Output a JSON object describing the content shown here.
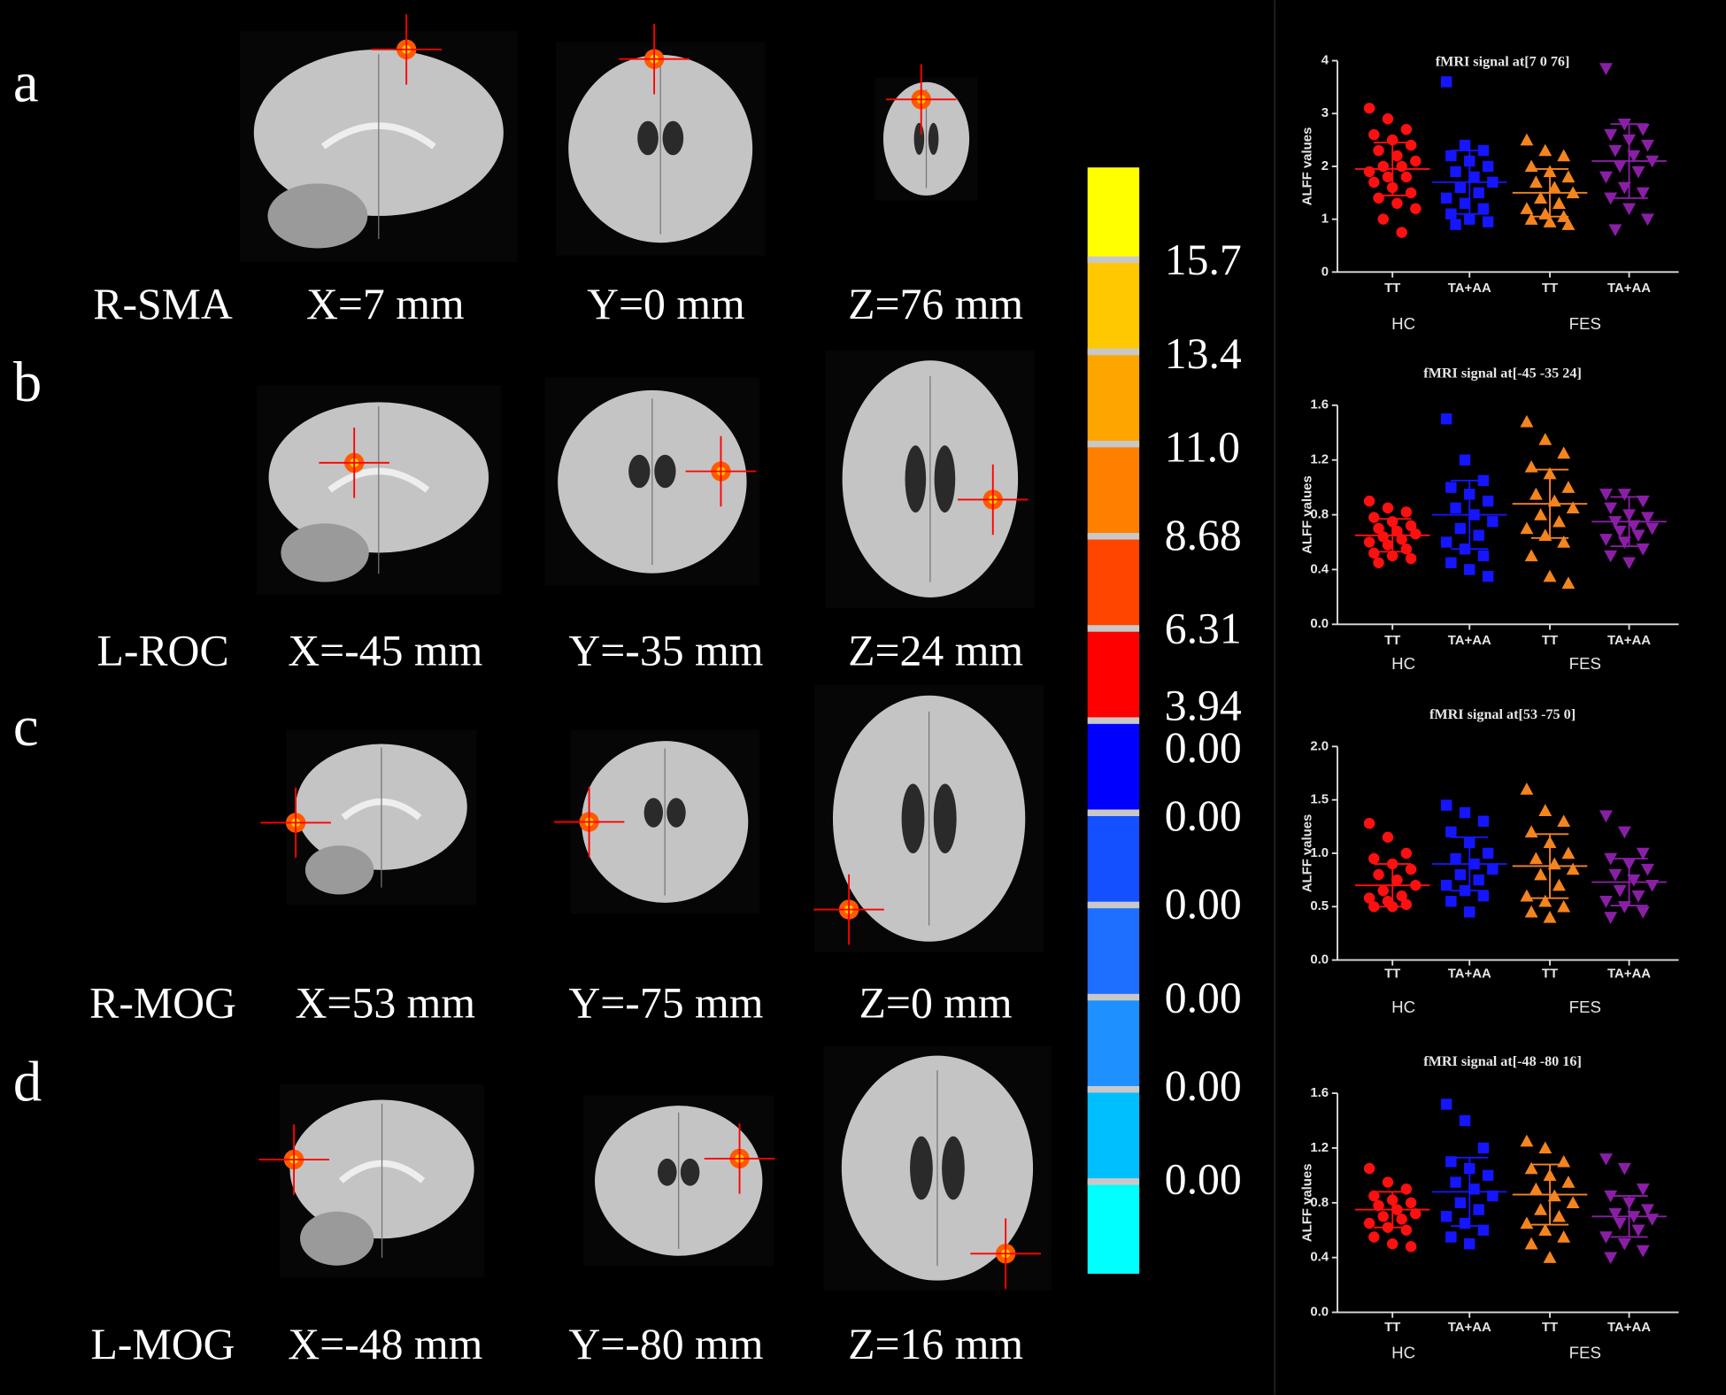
{
  "panels": [
    {
      "letter": "a",
      "region": "R-SMA",
      "coords": [
        "X=7 mm",
        "Y=0 mm",
        "Z=76 mm"
      ]
    },
    {
      "letter": "b",
      "region": "L-ROC",
      "coords": [
        "X=-45 mm",
        "Y=-35 mm",
        "Z=24 mm"
      ]
    },
    {
      "letter": "c",
      "region": "R-MOG",
      "coords": [
        "X=53 mm",
        "Y=-75 mm",
        "Z=0 mm"
      ]
    },
    {
      "letter": "d",
      "region": "L-MOG",
      "coords": [
        "X=-48 mm",
        "Y=-80 mm",
        "Z=16 mm"
      ]
    }
  ],
  "colorbar": {
    "colors": [
      "#ffff00",
      "#ffc800",
      "#ffa500",
      "#ff7f00",
      "#ff4500",
      "#ff0000",
      "#0000ff",
      "#1450ff",
      "#1e6eff",
      "#1e90ff",
      "#00bfff",
      "#00ffff"
    ],
    "labels": [
      "15.7",
      "13.4",
      "11.0",
      "8.68",
      "6.31",
      "3.94",
      "0.00",
      "0.00",
      "0.00",
      "0.00",
      "0.00",
      "0.00"
    ]
  },
  "chart_data": [
    {
      "type": "strip",
      "title": "fMRI signal at[7 0 76]",
      "ylabel": "ALFF values",
      "categories": [
        "TT",
        "TA+AA",
        "TT",
        "TA+AA"
      ],
      "group_labels": [
        "HC",
        "FES"
      ],
      "ylim": [
        0,
        4
      ],
      "yticks": [
        0,
        1,
        2,
        3,
        4
      ],
      "series": [
        {
          "color": "#ff1010",
          "marker": "circle",
          "mean": 1.95,
          "sd": 0.5,
          "values": [
            3.1,
            2.9,
            2.7,
            2.6,
            2.5,
            2.4,
            2.3,
            2.2,
            2.1,
            2.0,
            2.0,
            1.9,
            1.8,
            1.8,
            1.7,
            1.6,
            1.5,
            1.4,
            1.3,
            1.2,
            1.0,
            0.75
          ]
        },
        {
          "color": "#1515ff",
          "marker": "square",
          "mean": 1.7,
          "sd": 0.6,
          "values": [
            3.6,
            2.4,
            2.3,
            2.2,
            2.1,
            2.0,
            1.9,
            1.8,
            1.7,
            1.6,
            1.5,
            1.4,
            1.3,
            1.2,
            1.1,
            1.0,
            0.95,
            0.9
          ]
        },
        {
          "color": "#f5841f",
          "marker": "triangle-up",
          "mean": 1.5,
          "sd": 0.45,
          "values": [
            2.5,
            2.3,
            2.2,
            2.0,
            1.9,
            1.8,
            1.7,
            1.6,
            1.5,
            1.4,
            1.3,
            1.2,
            1.1,
            1.05,
            1.0,
            0.95,
            0.9
          ]
        },
        {
          "color": "#8a1fa6",
          "marker": "triangle-down",
          "mean": 2.1,
          "sd": 0.7,
          "values": [
            3.85,
            2.8,
            2.7,
            2.6,
            2.5,
            2.4,
            2.3,
            2.2,
            2.1,
            2.0,
            1.9,
            1.8,
            1.6,
            1.5,
            1.4,
            1.2,
            1.0,
            0.8
          ]
        }
      ]
    },
    {
      "type": "strip",
      "title": "fMRI signal at[-45 -35 24]",
      "ylabel": "ALFF values",
      "categories": [
        "TT",
        "TA+AA",
        "TT",
        "TA+AA"
      ],
      "group_labels": [
        "HC",
        "FES"
      ],
      "ylim": [
        0,
        1.6
      ],
      "yticks": [
        {
          "value": 0,
          "label": "0.0"
        },
        0.4,
        0.8,
        1.2,
        1.6
      ],
      "series": [
        {
          "color": "#ff1010",
          "marker": "circle",
          "mean": 0.65,
          "sd": 0.12,
          "values": [
            0.9,
            0.85,
            0.82,
            0.78,
            0.75,
            0.72,
            0.7,
            0.68,
            0.66,
            0.64,
            0.62,
            0.6,
            0.58,
            0.55,
            0.52,
            0.5,
            0.48,
            0.45
          ]
        },
        {
          "color": "#1515ff",
          "marker": "square",
          "mean": 0.8,
          "sd": 0.25,
          "values": [
            1.5,
            1.2,
            1.05,
            1.0,
            0.95,
            0.9,
            0.85,
            0.8,
            0.75,
            0.7,
            0.65,
            0.6,
            0.55,
            0.5,
            0.45,
            0.4,
            0.35
          ]
        },
        {
          "color": "#f5841f",
          "marker": "triangle-up",
          "mean": 0.88,
          "sd": 0.25,
          "values": [
            1.48,
            1.35,
            1.25,
            1.15,
            1.1,
            1.0,
            0.95,
            0.9,
            0.85,
            0.8,
            0.75,
            0.7,
            0.65,
            0.6,
            0.5,
            0.35,
            0.3
          ]
        },
        {
          "color": "#8a1fa6",
          "marker": "triangle-down",
          "mean": 0.75,
          "sd": 0.18,
          "values": [
            0.95,
            0.95,
            0.9,
            0.85,
            0.8,
            0.78,
            0.75,
            0.72,
            0.7,
            0.68,
            0.65,
            0.62,
            0.6,
            0.55,
            0.5,
            0.45
          ]
        }
      ]
    },
    {
      "type": "strip",
      "title": "fMRI signal at[53 -75 0]",
      "ylabel": "ALFF values",
      "categories": [
        "TT",
        "TA+AA",
        "TT",
        "TA+AA"
      ],
      "group_labels": [
        "HC",
        "FES"
      ],
      "ylim": [
        0,
        2
      ],
      "yticks": [
        {
          "value": 0,
          "label": "0.0"
        },
        0.5,
        {
          "value": 1,
          "label": "1.0"
        },
        1.5,
        {
          "value": 2,
          "label": "2.0"
        }
      ],
      "series": [
        {
          "color": "#ff1010",
          "marker": "circle",
          "mean": 0.7,
          "sd": 0.2,
          "values": [
            1.28,
            1.15,
            1.0,
            0.95,
            0.9,
            0.85,
            0.8,
            0.75,
            0.7,
            0.65,
            0.6,
            0.58,
            0.55,
            0.52,
            0.5,
            0.5
          ]
        },
        {
          "color": "#1515ff",
          "marker": "square",
          "mean": 0.9,
          "sd": 0.25,
          "values": [
            1.45,
            1.38,
            1.3,
            1.2,
            1.1,
            1.0,
            0.95,
            0.9,
            0.85,
            0.8,
            0.75,
            0.7,
            0.65,
            0.6,
            0.55,
            0.45
          ]
        },
        {
          "color": "#f5841f",
          "marker": "triangle-up",
          "mean": 0.88,
          "sd": 0.3,
          "values": [
            1.6,
            1.4,
            1.3,
            1.2,
            1.1,
            1.0,
            0.95,
            0.9,
            0.85,
            0.8,
            0.7,
            0.6,
            0.55,
            0.5,
            0.45,
            0.4
          ]
        },
        {
          "color": "#8a1fa6",
          "marker": "triangle-down",
          "mean": 0.73,
          "sd": 0.22,
          "values": [
            1.35,
            1.2,
            1.0,
            0.95,
            0.9,
            0.85,
            0.8,
            0.75,
            0.7,
            0.65,
            0.6,
            0.55,
            0.5,
            0.45,
            0.4
          ]
        }
      ]
    },
    {
      "type": "strip",
      "title": "fMRI signal at[-48 -80 16]",
      "ylabel": "ALFF values",
      "categories": [
        "TT",
        "TA+AA",
        "TT",
        "TA+AA"
      ],
      "group_labels": [
        "HC",
        "FES"
      ],
      "ylim": [
        0,
        1.6
      ],
      "yticks": [
        {
          "value": 0,
          "label": "0.0"
        },
        0.4,
        0.8,
        1.2,
        1.6
      ],
      "series": [
        {
          "color": "#ff1010",
          "marker": "circle",
          "mean": 0.75,
          "sd": 0.13,
          "values": [
            1.05,
            0.95,
            0.9,
            0.85,
            0.82,
            0.8,
            0.78,
            0.75,
            0.72,
            0.7,
            0.68,
            0.65,
            0.62,
            0.6,
            0.55,
            0.5,
            0.48
          ]
        },
        {
          "color": "#1515ff",
          "marker": "square",
          "mean": 0.88,
          "sd": 0.25,
          "values": [
            1.52,
            1.4,
            1.2,
            1.1,
            1.05,
            1.0,
            0.95,
            0.9,
            0.85,
            0.8,
            0.75,
            0.7,
            0.65,
            0.6,
            0.55,
            0.5
          ]
        },
        {
          "color": "#f5841f",
          "marker": "triangle-up",
          "mean": 0.86,
          "sd": 0.22,
          "values": [
            1.25,
            1.2,
            1.1,
            1.05,
            1.0,
            0.95,
            0.9,
            0.85,
            0.8,
            0.75,
            0.7,
            0.65,
            0.6,
            0.55,
            0.5,
            0.4
          ]
        },
        {
          "color": "#8a1fa6",
          "marker": "triangle-down",
          "mean": 0.7,
          "sd": 0.15,
          "values": [
            1.12,
            1.05,
            0.9,
            0.85,
            0.8,
            0.75,
            0.72,
            0.7,
            0.68,
            0.65,
            0.6,
            0.55,
            0.5,
            0.45,
            0.4
          ]
        }
      ]
    }
  ]
}
